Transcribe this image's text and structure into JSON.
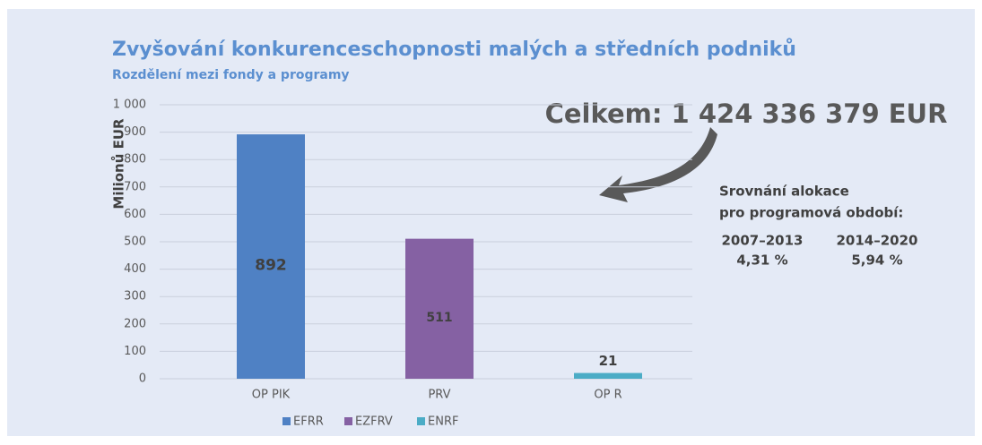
{
  "chart_data": {
    "type": "bar",
    "title": "Zvyšování konkurenceschopnosti malých a středních podniků",
    "subtitle": "Rozdělení mezi fondy a programy",
    "y_label": "Milionů EUR",
    "categories": [
      "OP PIK",
      "PRV",
      "OP R"
    ],
    "series": [
      {
        "name": "EFRR",
        "color": "#4f81c4",
        "values": [
          892,
          null,
          null
        ]
      },
      {
        "name": "EZFRV",
        "color": "#8561a3",
        "values": [
          null,
          511,
          null
        ]
      },
      {
        "name": "ENRF",
        "color": "#4bacc6",
        "values": [
          null,
          null,
          21
        ]
      }
    ],
    "ylim": [
      0,
      1000
    ],
    "yticks": [
      0,
      100,
      200,
      300,
      400,
      500,
      600,
      700,
      800,
      900,
      {
        "value": 1000,
        "label": "1 000"
      }
    ],
    "grid": true,
    "legend": "bottom",
    "annotations": {
      "total": "Celkem: 1 424 336 379 EUR",
      "comparison_title": [
        "Srovnání alokace",
        "pro programová období:"
      ],
      "periods": [
        {
          "period": "2007–2013",
          "share": "4,31 %"
        },
        {
          "period": "2014–2020",
          "share": "5,94 %"
        }
      ]
    }
  }
}
